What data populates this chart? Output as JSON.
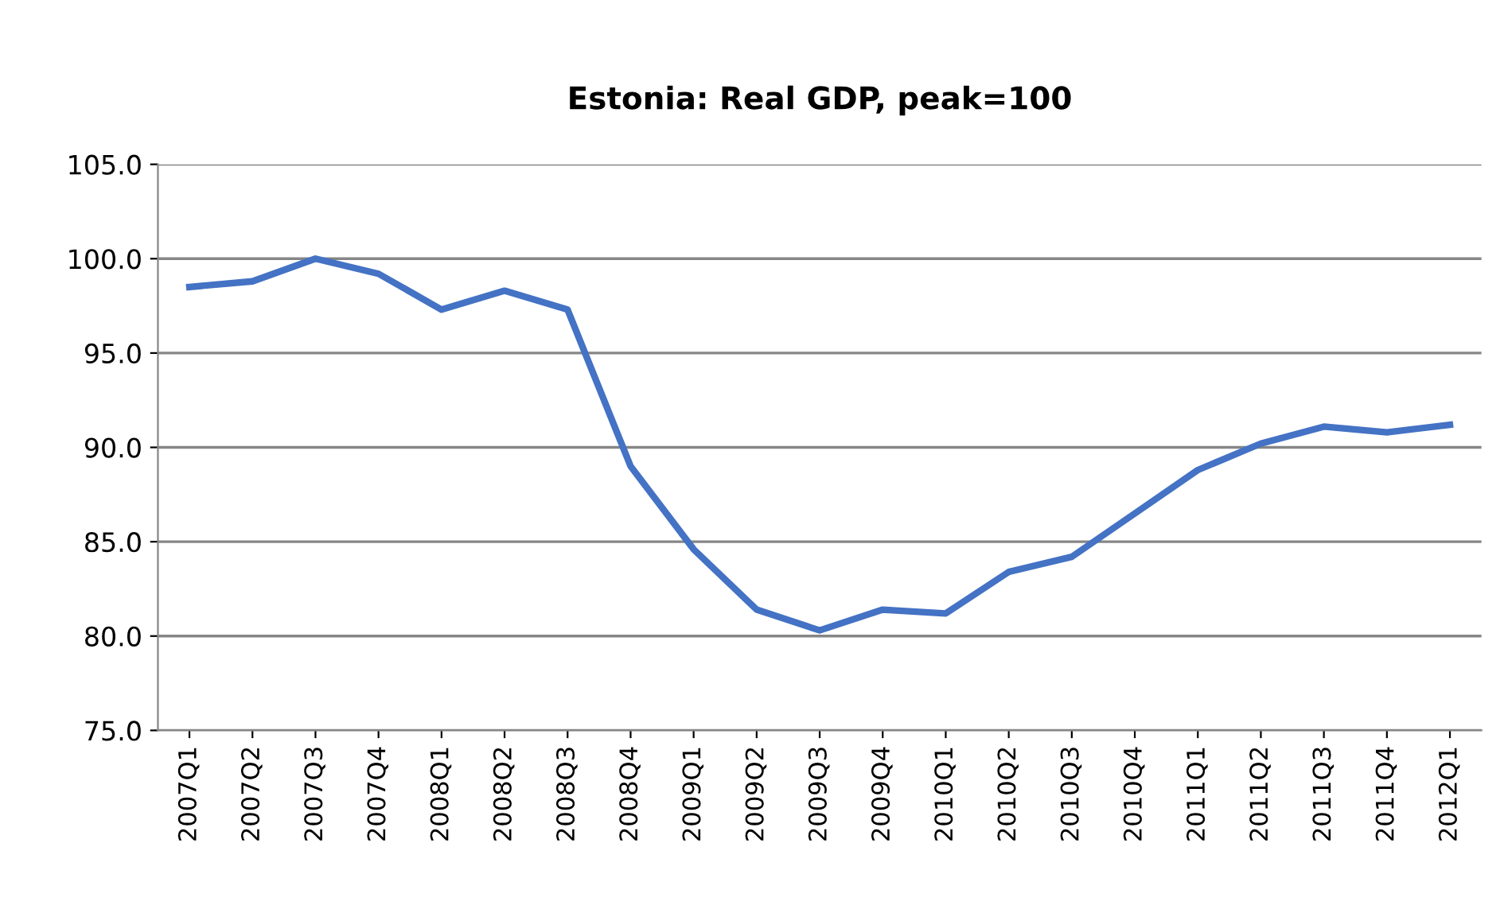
{
  "chart_data": {
    "type": "line",
    "title": "Estonia: Real GDP, peak=100",
    "categories": [
      "2007Q1",
      "2007Q2",
      "2007Q3",
      "2007Q4",
      "2008Q1",
      "2008Q2",
      "2008Q3",
      "2008Q4",
      "2009Q1",
      "2009Q2",
      "2009Q3",
      "2009Q4",
      "2010Q1",
      "2010Q2",
      "2010Q3",
      "2010Q4",
      "2011Q1",
      "2011Q2",
      "2011Q3",
      "2011Q4",
      "2012Q1"
    ],
    "series": [
      {
        "color": "#4472c4",
        "values": [
          98.5,
          98.8,
          100.0,
          99.2,
          97.3,
          98.3,
          97.3,
          89.0,
          84.6,
          81.4,
          80.3,
          81.4,
          81.2,
          83.4,
          84.2,
          86.5,
          88.8,
          90.2,
          91.1,
          90.8,
          91.2
        ]
      }
    ],
    "ylim": [
      75,
      105
    ],
    "yticks": [
      {
        "value": 75,
        "label": "75.0"
      },
      {
        "value": 80,
        "label": "80.0"
      },
      {
        "value": 85,
        "label": "85.0"
      },
      {
        "value": 90,
        "label": "90.0"
      },
      {
        "value": 95,
        "label": "95.0"
      },
      {
        "value": 100,
        "label": "100.0"
      },
      {
        "value": 105,
        "label": "105.0"
      }
    ],
    "grid": "y",
    "legend": false,
    "marker": "none",
    "line_style": "solid"
  }
}
